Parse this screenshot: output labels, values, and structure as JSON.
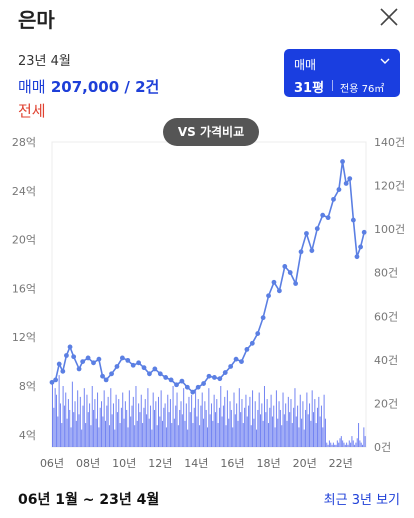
{
  "header": {
    "title": "은마"
  },
  "summary": {
    "date": "23년 4월",
    "trade_kind": "매매",
    "trade_value": "207,000 / 2건",
    "lease_label": "전세"
  },
  "selector": {
    "type": "매매",
    "size": "31평",
    "area": "전용 76㎡"
  },
  "compare_button": "VS 가격비교",
  "footer": {
    "range": "06년 1월 ~ 23년 4월",
    "link": "최근 3년 보기"
  },
  "colors": {
    "accent": "#1a3ee0",
    "line": "#5b7fe3",
    "bar": "#5b6ff0",
    "lease": "#e0412f"
  },
  "chart_data": {
    "type": "line",
    "x_range": [
      2006,
      2023.4
    ],
    "xticks": [
      "06년",
      "08년",
      "10년",
      "12년",
      "14년",
      "16년",
      "18년",
      "20년",
      "22년"
    ],
    "xtick_values": [
      2006,
      2008,
      2010,
      2012,
      2014,
      2016,
      2018,
      2020,
      2022
    ],
    "left_axis": {
      "ticks": [
        "28억",
        "24억",
        "20억",
        "16억",
        "12억",
        "8억",
        "4억"
      ],
      "values": [
        28,
        24,
        20,
        16,
        12,
        8,
        4
      ],
      "range": [
        3,
        28
      ]
    },
    "right_axis": {
      "ticks": [
        "140건",
        "120건",
        "100건",
        "80건",
        "60건",
        "40건",
        "20건",
        "0건"
      ],
      "values": [
        140,
        120,
        100,
        80,
        60,
        40,
        20,
        0
      ],
      "range": [
        0,
        140
      ]
    },
    "series": [
      {
        "points": [
          [
            2006.0,
            8.3
          ],
          [
            2006.2,
            8.5
          ],
          [
            2006.4,
            9.8
          ],
          [
            2006.6,
            9.2
          ],
          [
            2006.8,
            10.5
          ],
          [
            2007.0,
            11.2
          ],
          [
            2007.2,
            10.4
          ],
          [
            2007.5,
            9.4
          ],
          [
            2007.7,
            10.0
          ],
          [
            2008.0,
            10.3
          ],
          [
            2008.3,
            9.9
          ],
          [
            2008.6,
            10.2
          ],
          [
            2008.8,
            8.8
          ],
          [
            2009.0,
            8.5
          ],
          [
            2009.3,
            9.0
          ],
          [
            2009.6,
            9.6
          ],
          [
            2009.9,
            10.3
          ],
          [
            2010.2,
            10.1
          ],
          [
            2010.5,
            9.7
          ],
          [
            2010.8,
            9.9
          ],
          [
            2011.1,
            9.5
          ],
          [
            2011.4,
            9.0
          ],
          [
            2011.7,
            9.4
          ],
          [
            2012.0,
            9.0
          ],
          [
            2012.3,
            8.7
          ],
          [
            2012.6,
            8.5
          ],
          [
            2012.9,
            8.1
          ],
          [
            2013.2,
            8.4
          ],
          [
            2013.5,
            7.9
          ],
          [
            2013.8,
            7.5
          ],
          [
            2014.1,
            7.9
          ],
          [
            2014.4,
            8.2
          ],
          [
            2014.7,
            8.8
          ],
          [
            2015.0,
            8.7
          ],
          [
            2015.3,
            8.6
          ],
          [
            2015.6,
            9.1
          ],
          [
            2015.9,
            9.6
          ],
          [
            2016.2,
            10.2
          ],
          [
            2016.5,
            10.0
          ],
          [
            2016.8,
            11.0
          ],
          [
            2017.1,
            11.5
          ],
          [
            2017.4,
            12.3
          ],
          [
            2017.7,
            13.6
          ],
          [
            2018.0,
            15.4
          ],
          [
            2018.3,
            16.5
          ],
          [
            2018.6,
            15.8
          ],
          [
            2018.9,
            17.8
          ],
          [
            2019.2,
            17.3
          ],
          [
            2019.5,
            16.4
          ],
          [
            2019.8,
            19.0
          ],
          [
            2020.1,
            20.5
          ],
          [
            2020.4,
            19.1
          ],
          [
            2020.7,
            20.9
          ],
          [
            2021.0,
            22.0
          ],
          [
            2021.3,
            21.8
          ],
          [
            2021.6,
            23.3
          ],
          [
            2021.9,
            24.1
          ],
          [
            2022.1,
            26.4
          ],
          [
            2022.3,
            24.6
          ],
          [
            2022.5,
            25.0
          ],
          [
            2022.7,
            21.6
          ],
          [
            2022.9,
            18.6
          ],
          [
            2023.1,
            19.4
          ],
          [
            2023.3,
            20.6
          ]
        ]
      }
    ],
    "volume": [
      29,
      18,
      27,
      24,
      14,
      33,
      20,
      11,
      28,
      19,
      25,
      13,
      22,
      17,
      9,
      30,
      16,
      21,
      12,
      26,
      15,
      23,
      8,
      19,
      27,
      11,
      24,
      16,
      20,
      10,
      28,
      17,
      22,
      13,
      25,
      9,
      18,
      21,
      14,
      26,
      12,
      19,
      23,
      10,
      27,
      15,
      20,
      8,
      24,
      16,
      22,
      11,
      18,
      25,
      13,
      21,
      17,
      9,
      26,
      14,
      19,
      23,
      10,
      28,
      12,
      20,
      16,
      24,
      11,
      18,
      22,
      15,
      27,
      13,
      19,
      8,
      25,
      17,
      21,
      10,
      23,
      14,
      26,
      12,
      18,
      20,
      9,
      24,
      16,
      22,
      11,
      28,
      13,
      19,
      25,
      10,
      17,
      21,
      15,
      27,
      12,
      20,
      8,
      23,
      16,
      24,
      11,
      18,
      26,
      14,
      22,
      10,
      19,
      25,
      13,
      21,
      17,
      9,
      27,
      15,
      20,
      12,
      24,
      16,
      22,
      11,
      18,
      28,
      14,
      19,
      23,
      10,
      26,
      13,
      21,
      17,
      9,
      25,
      15,
      20,
      12,
      27,
      16,
      22,
      11,
      18,
      24,
      14,
      19,
      23,
      10,
      26,
      13,
      21,
      8,
      17,
      25,
      15,
      20,
      12,
      28,
      16,
      22,
      11,
      18,
      24,
      14,
      19,
      9,
      26,
      13,
      21,
      17,
      10,
      25,
      15,
      20,
      12,
      23,
      16,
      22,
      11,
      18,
      27,
      14,
      19,
      9,
      24,
      13,
      21,
      8,
      17,
      25,
      15,
      20,
      12,
      26,
      16,
      22,
      11,
      18,
      23,
      14,
      19,
      9,
      24,
      13,
      2,
      1,
      3,
      2,
      1,
      2,
      1,
      1,
      3,
      2,
      4,
      5,
      3,
      2,
      1,
      2,
      1,
      3,
      2,
      5,
      3,
      1,
      2,
      4,
      11,
      3,
      2,
      1,
      9,
      5
    ]
  }
}
